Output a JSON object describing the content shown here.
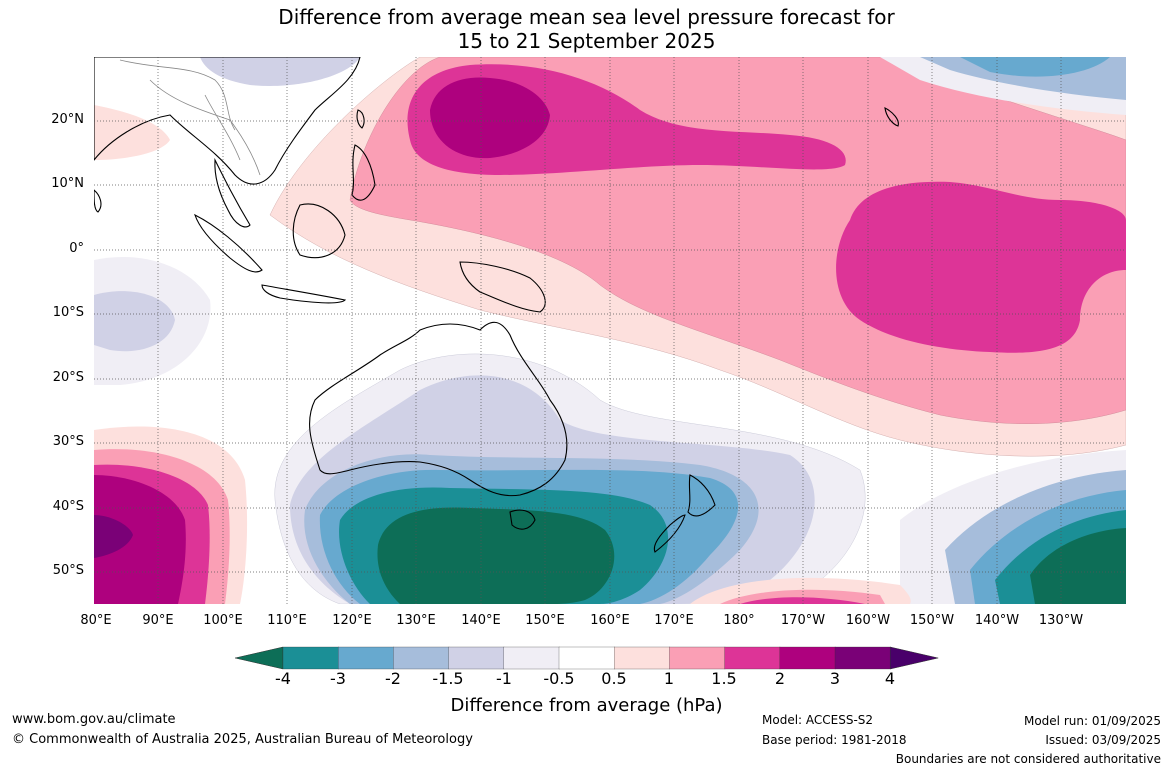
{
  "title": {
    "line1": "Difference from average mean sea level pressure forecast for",
    "line2": "15 to 21 September 2025"
  },
  "axes": {
    "lat_labels": [
      "20°N",
      "10°N",
      "0°",
      "10°S",
      "20°S",
      "30°S",
      "40°S",
      "50°S"
    ],
    "lon_labels": [
      "80°E",
      "90°E",
      "100°E",
      "110°E",
      "120°E",
      "130°E",
      "140°E",
      "150°E",
      "160°E",
      "170°E",
      "180°",
      "170°W",
      "160°W",
      "150°W",
      "140°W",
      "130°W"
    ]
  },
  "colorbar": {
    "ticks": [
      "-4",
      "-3",
      "-2",
      "-1.5",
      "-1",
      "-0.5",
      "0.5",
      "1",
      "1.5",
      "2",
      "3",
      "4"
    ],
    "colors": [
      "#0d6e57",
      "#1b8f96",
      "#67a9cf",
      "#a6bddb",
      "#d0d1e6",
      "#f0eef5",
      "#ffffff",
      "#fde0dd",
      "#fa9fb5",
      "#dd3497",
      "#ae017e",
      "#7a0177",
      "#49006a"
    ],
    "label": "Difference from average (hPa)"
  },
  "footer": {
    "website": "www.bom.gov.au/climate",
    "copyright": "© Commonwealth of Australia 2025, Australian Bureau of Meteorology",
    "model": "Model: ACCESS-S2",
    "base_period": "Base period: 1981-2018",
    "model_run": "Model run: 01/09/2025",
    "issued": "Issued: 03/09/2025",
    "disclaimer": "Boundaries are not considered authoritative"
  }
}
